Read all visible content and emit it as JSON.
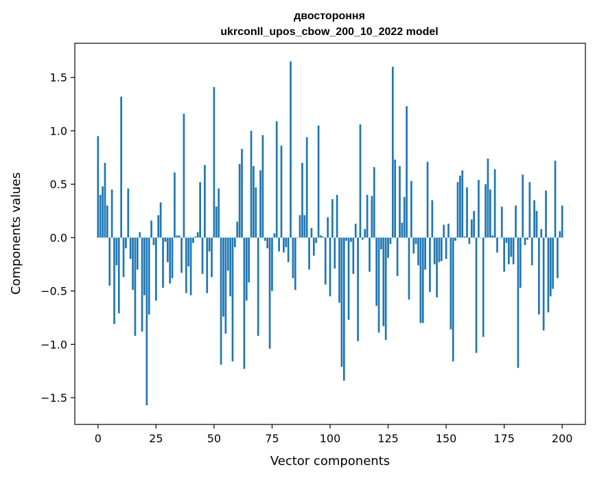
{
  "chart_data": {
    "type": "bar",
    "title": "двостороння",
    "subtitle": "ukrconll_upos_cbow_200_10_2022 model",
    "xlabel": "Vector components",
    "ylabel": "Components values",
    "xlim": [
      -10,
      210
    ],
    "ylim": [
      -1.75,
      1.82
    ],
    "xticks": [
      0,
      25,
      50,
      75,
      100,
      125,
      150,
      175,
      200
    ],
    "yticks": [
      -1.5,
      -1.0,
      -0.5,
      0.0,
      0.5,
      1.0,
      1.5
    ],
    "ytick_labels": [
      "−1.5",
      "−1.0",
      "−0.5",
      "0.0",
      "0.5",
      "1.0",
      "1.5"
    ],
    "bar_color": "#1f77b4",
    "values": [
      0.95,
      0.4,
      0.48,
      0.7,
      0.3,
      -0.45,
      0.45,
      -0.81,
      -0.26,
      -0.71,
      1.32,
      -0.37,
      -0.1,
      0.46,
      -0.2,
      -0.49,
      -0.92,
      -0.3,
      0.05,
      -0.88,
      -0.54,
      -1.57,
      -0.72,
      0.16,
      -0.07,
      -0.59,
      0.21,
      0.33,
      -0.47,
      -0.04,
      -0.23,
      -0.43,
      -0.38,
      0.61,
      0.02,
      0.02,
      -0.33,
      1.16,
      -0.52,
      -0.27,
      -0.54,
      -0.05,
      0.01,
      0.05,
      0.52,
      -0.34,
      0.68,
      -0.52,
      -0.13,
      -0.37,
      1.41,
      0.29,
      0.46,
      -1.19,
      -0.74,
      -0.9,
      -0.31,
      -0.55,
      -1.16,
      -0.09,
      0.15,
      0.69,
      0.83,
      -1.23,
      -0.59,
      -0.42,
      1.0,
      0.67,
      0.47,
      -0.92,
      0.63,
      0.96,
      -0.03,
      -0.1,
      -1.04,
      -0.5,
      0.04,
      1.09,
      -0.13,
      0.86,
      -0.14,
      -0.09,
      -0.23,
      1.65,
      -0.38,
      -0.49,
      0.0,
      0.21,
      0.7,
      0.21,
      0.94,
      -0.3,
      0.09,
      -0.17,
      -0.05,
      1.05,
      0.02,
      0.01,
      -0.44,
      0.19,
      -0.55,
      0.36,
      -0.29,
      0.4,
      -0.61,
      -1.21,
      -1.34,
      -0.03,
      -0.77,
      -0.04,
      -0.34,
      0.13,
      -0.97,
      1.06,
      -0.02,
      0.08,
      0.4,
      -0.32,
      0.39,
      0.66,
      -0.64,
      -0.89,
      -0.11,
      -0.83,
      -0.96,
      -0.19,
      -0.06,
      1.6,
      0.73,
      -0.36,
      0.67,
      0.14,
      0.38,
      1.23,
      -0.58,
      0.53,
      -0.15,
      -0.06,
      -0.26,
      -0.8,
      -0.8,
      -0.3,
      0.71,
      -0.51,
      0.35,
      -0.25,
      -0.56,
      -0.23,
      -0.22,
      0.12,
      -0.2,
      0.13,
      -0.86,
      -1.16,
      -0.03,
      0.52,
      0.58,
      0.63,
      0.01,
      0.47,
      -0.06,
      0.17,
      0.25,
      -1.08,
      0.54,
      0.0,
      -0.93,
      0.5,
      0.74,
      0.45,
      0.02,
      0.64,
      -0.14,
      0.0,
      0.29,
      -0.32,
      -0.05,
      -0.25,
      -0.18,
      -0.25,
      0.3,
      -1.22,
      -0.47,
      0.59,
      -0.07,
      -0.02,
      0.52,
      -0.26,
      0.35,
      0.25,
      -0.72,
      0.08,
      -0.87,
      0.44,
      -0.7,
      -0.55,
      -0.48,
      0.72,
      -0.38,
      0.06,
      0.3
    ]
  }
}
